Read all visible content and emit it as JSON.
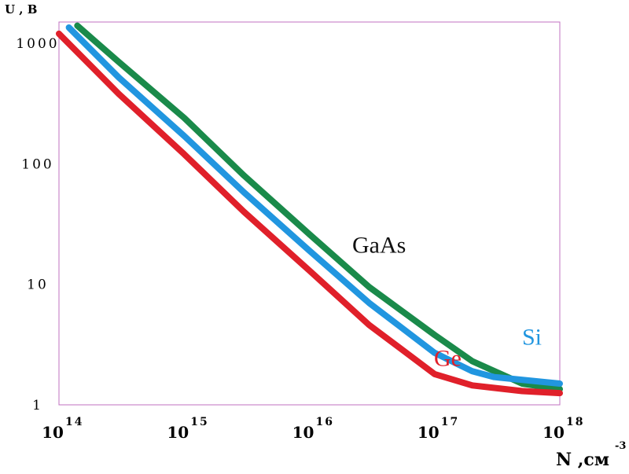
{
  "chart_data": {
    "type": "line",
    "title": "",
    "xlabel": "N ,см",
    "xlabel_exponent": "-3",
    "ylabel": "U , B",
    "x_scale": "log",
    "y_scale": "log",
    "xlim": [
      100000000000000.0,
      1e+18
    ],
    "ylim": [
      1,
      1500
    ],
    "grid": false,
    "legend": "inline labels near curves",
    "y_ticks": [
      {
        "value": 1000,
        "label": "1000"
      },
      {
        "value": 100,
        "label": "100"
      },
      {
        "value": 10,
        "label": "10"
      },
      {
        "value": 1,
        "label": "1"
      }
    ],
    "x_ticks": [
      {
        "value": 100000000000000.0,
        "base": "10",
        "exp": "14"
      },
      {
        "value": 1000000000000000.0,
        "base": "10",
        "exp": "15"
      },
      {
        "value": 1e+16,
        "base": "10",
        "exp": "16"
      },
      {
        "value": 1e+17,
        "base": "10",
        "exp": "17"
      },
      {
        "value": 1e+18,
        "base": "10",
        "exp": "18"
      }
    ],
    "series": [
      {
        "name": "GaAs",
        "color": "#1a8a4a",
        "label_color": "#111111",
        "x": [
          140000000000000.0,
          300000000000000.0,
          1000000000000000.0,
          3000000000000000.0,
          1e+16,
          3e+16,
          1e+17,
          2e+17,
          5e+17,
          1e+18
        ],
        "y": [
          1400,
          700,
          240,
          80,
          26,
          9.5,
          3.8,
          2.3,
          1.5,
          1.35
        ]
      },
      {
        "name": "Si",
        "color": "#2196e0",
        "label_color": "#2196e0",
        "x": [
          120000000000000.0,
          300000000000000.0,
          1000000000000000.0,
          3000000000000000.0,
          1e+16,
          3e+16,
          1e+17,
          2e+17,
          3e+17,
          1e+18
        ],
        "y": [
          1350,
          520,
          170,
          58,
          19,
          7,
          2.7,
          1.9,
          1.7,
          1.5
        ]
      },
      {
        "name": "Ge",
        "color": "#e0202a",
        "label_color": "#e0202a",
        "x": [
          100000000000000.0,
          300000000000000.0,
          1000000000000000.0,
          3000000000000000.0,
          1e+16,
          3e+16,
          1e+17,
          2e+17,
          5e+17,
          1e+18
        ],
        "y": [
          1200,
          380,
          120,
          40,
          13,
          4.6,
          1.8,
          1.45,
          1.3,
          1.25
        ]
      }
    ]
  }
}
